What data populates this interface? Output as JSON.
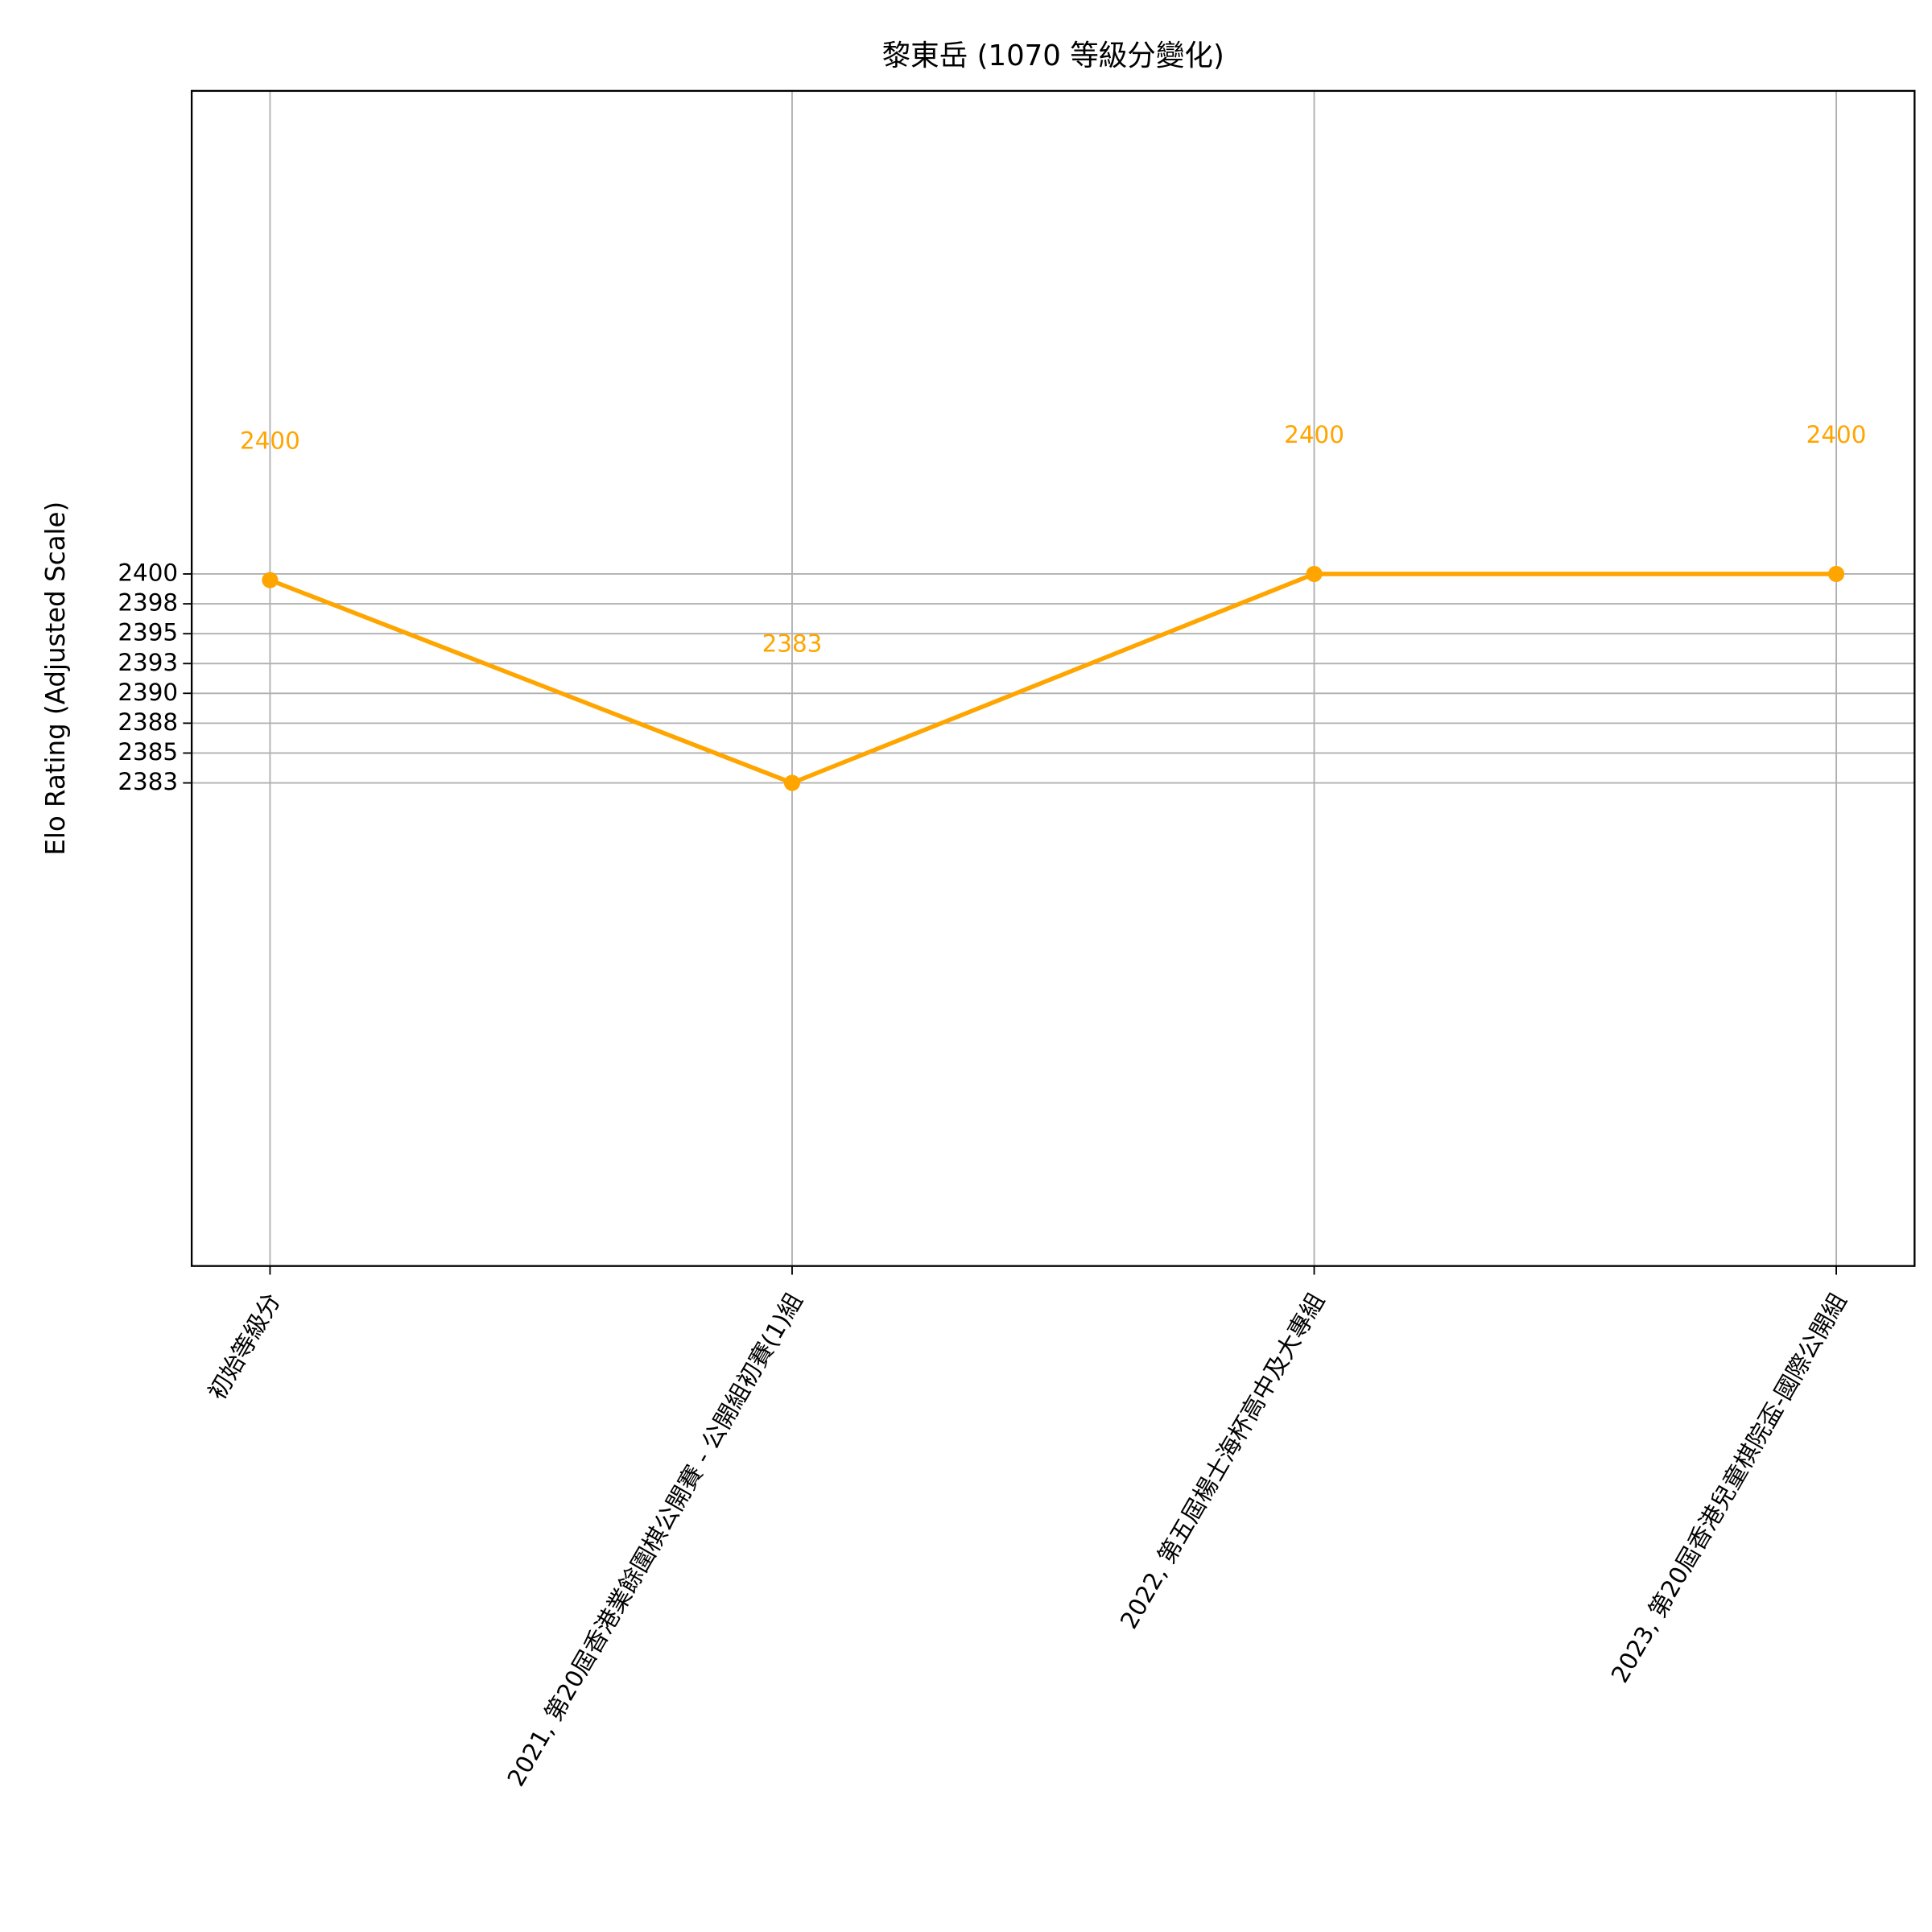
{
  "chart_data": {
    "type": "line",
    "title": "黎東岳 (1070 等級分變化)",
    "y_label": "Elo Rating (Adjusted Scale)",
    "categories": [
      "初始等級分",
      "2021, 第20屆香港業餘圍棋公開賽 - 公開組初賽(1)組",
      "2022, 第五屆楊士海杯高中及大專組",
      "2023, 第20屆香港兒童棋院盃-國際公開組"
    ],
    "series": [
      {
        "name": "黎東岳",
        "color": "#ffa500",
        "values": [
          2399.5,
          2383,
          2400,
          2400
        ],
        "value_labels": [
          "2400",
          "2383",
          "2400",
          "2400"
        ]
      }
    ],
    "xlim": [
      -0.15,
      3.15
    ],
    "ylim": [
      2343.7,
      2439.3
    ],
    "yticks": [
      2383,
      {
        "value": 2385.43,
        "label": "2385"
      },
      {
        "value": 2387.86,
        "label": "2388"
      },
      {
        "value": 2390.29,
        "label": "2390"
      },
      {
        "value": 2392.71,
        "label": "2393"
      },
      {
        "value": 2395.14,
        "label": "2395"
      },
      {
        "value": 2397.57,
        "label": "2398"
      },
      2400
    ],
    "grid": true
  }
}
